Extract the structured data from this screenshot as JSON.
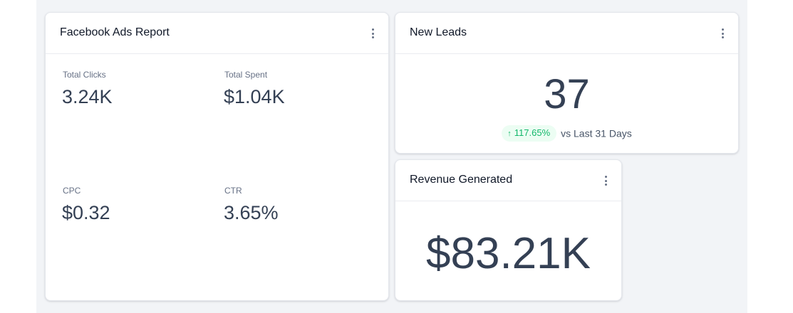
{
  "colors": {
    "page_background": "#f2f4f7",
    "card_background": "#ffffff",
    "value_text": "#344054",
    "positive_badge_bg": "#ecfdf3",
    "positive_badge_text": "#12b76a"
  },
  "facebook_ads_report": {
    "title": "Facebook Ads Report",
    "menu_icon": "more-vertical-icon",
    "metrics": [
      {
        "label": "Total Clicks",
        "value": "3.24K"
      },
      {
        "label": "Total Spent",
        "value": "$1.04K"
      },
      {
        "label": "CPC",
        "value": "$0.32"
      },
      {
        "label": "CTR",
        "value": "3.65%"
      }
    ]
  },
  "new_leads": {
    "title": "New Leads",
    "menu_icon": "more-vertical-icon",
    "value": "37",
    "change": {
      "direction_icon": "arrow-up-icon",
      "arrow": "↑",
      "percent": "117.65%",
      "comparison_text": "vs Last 31 Days"
    }
  },
  "revenue_generated": {
    "title": "Revenue Generated",
    "menu_icon": "more-vertical-icon",
    "value": "$83.21K"
  }
}
